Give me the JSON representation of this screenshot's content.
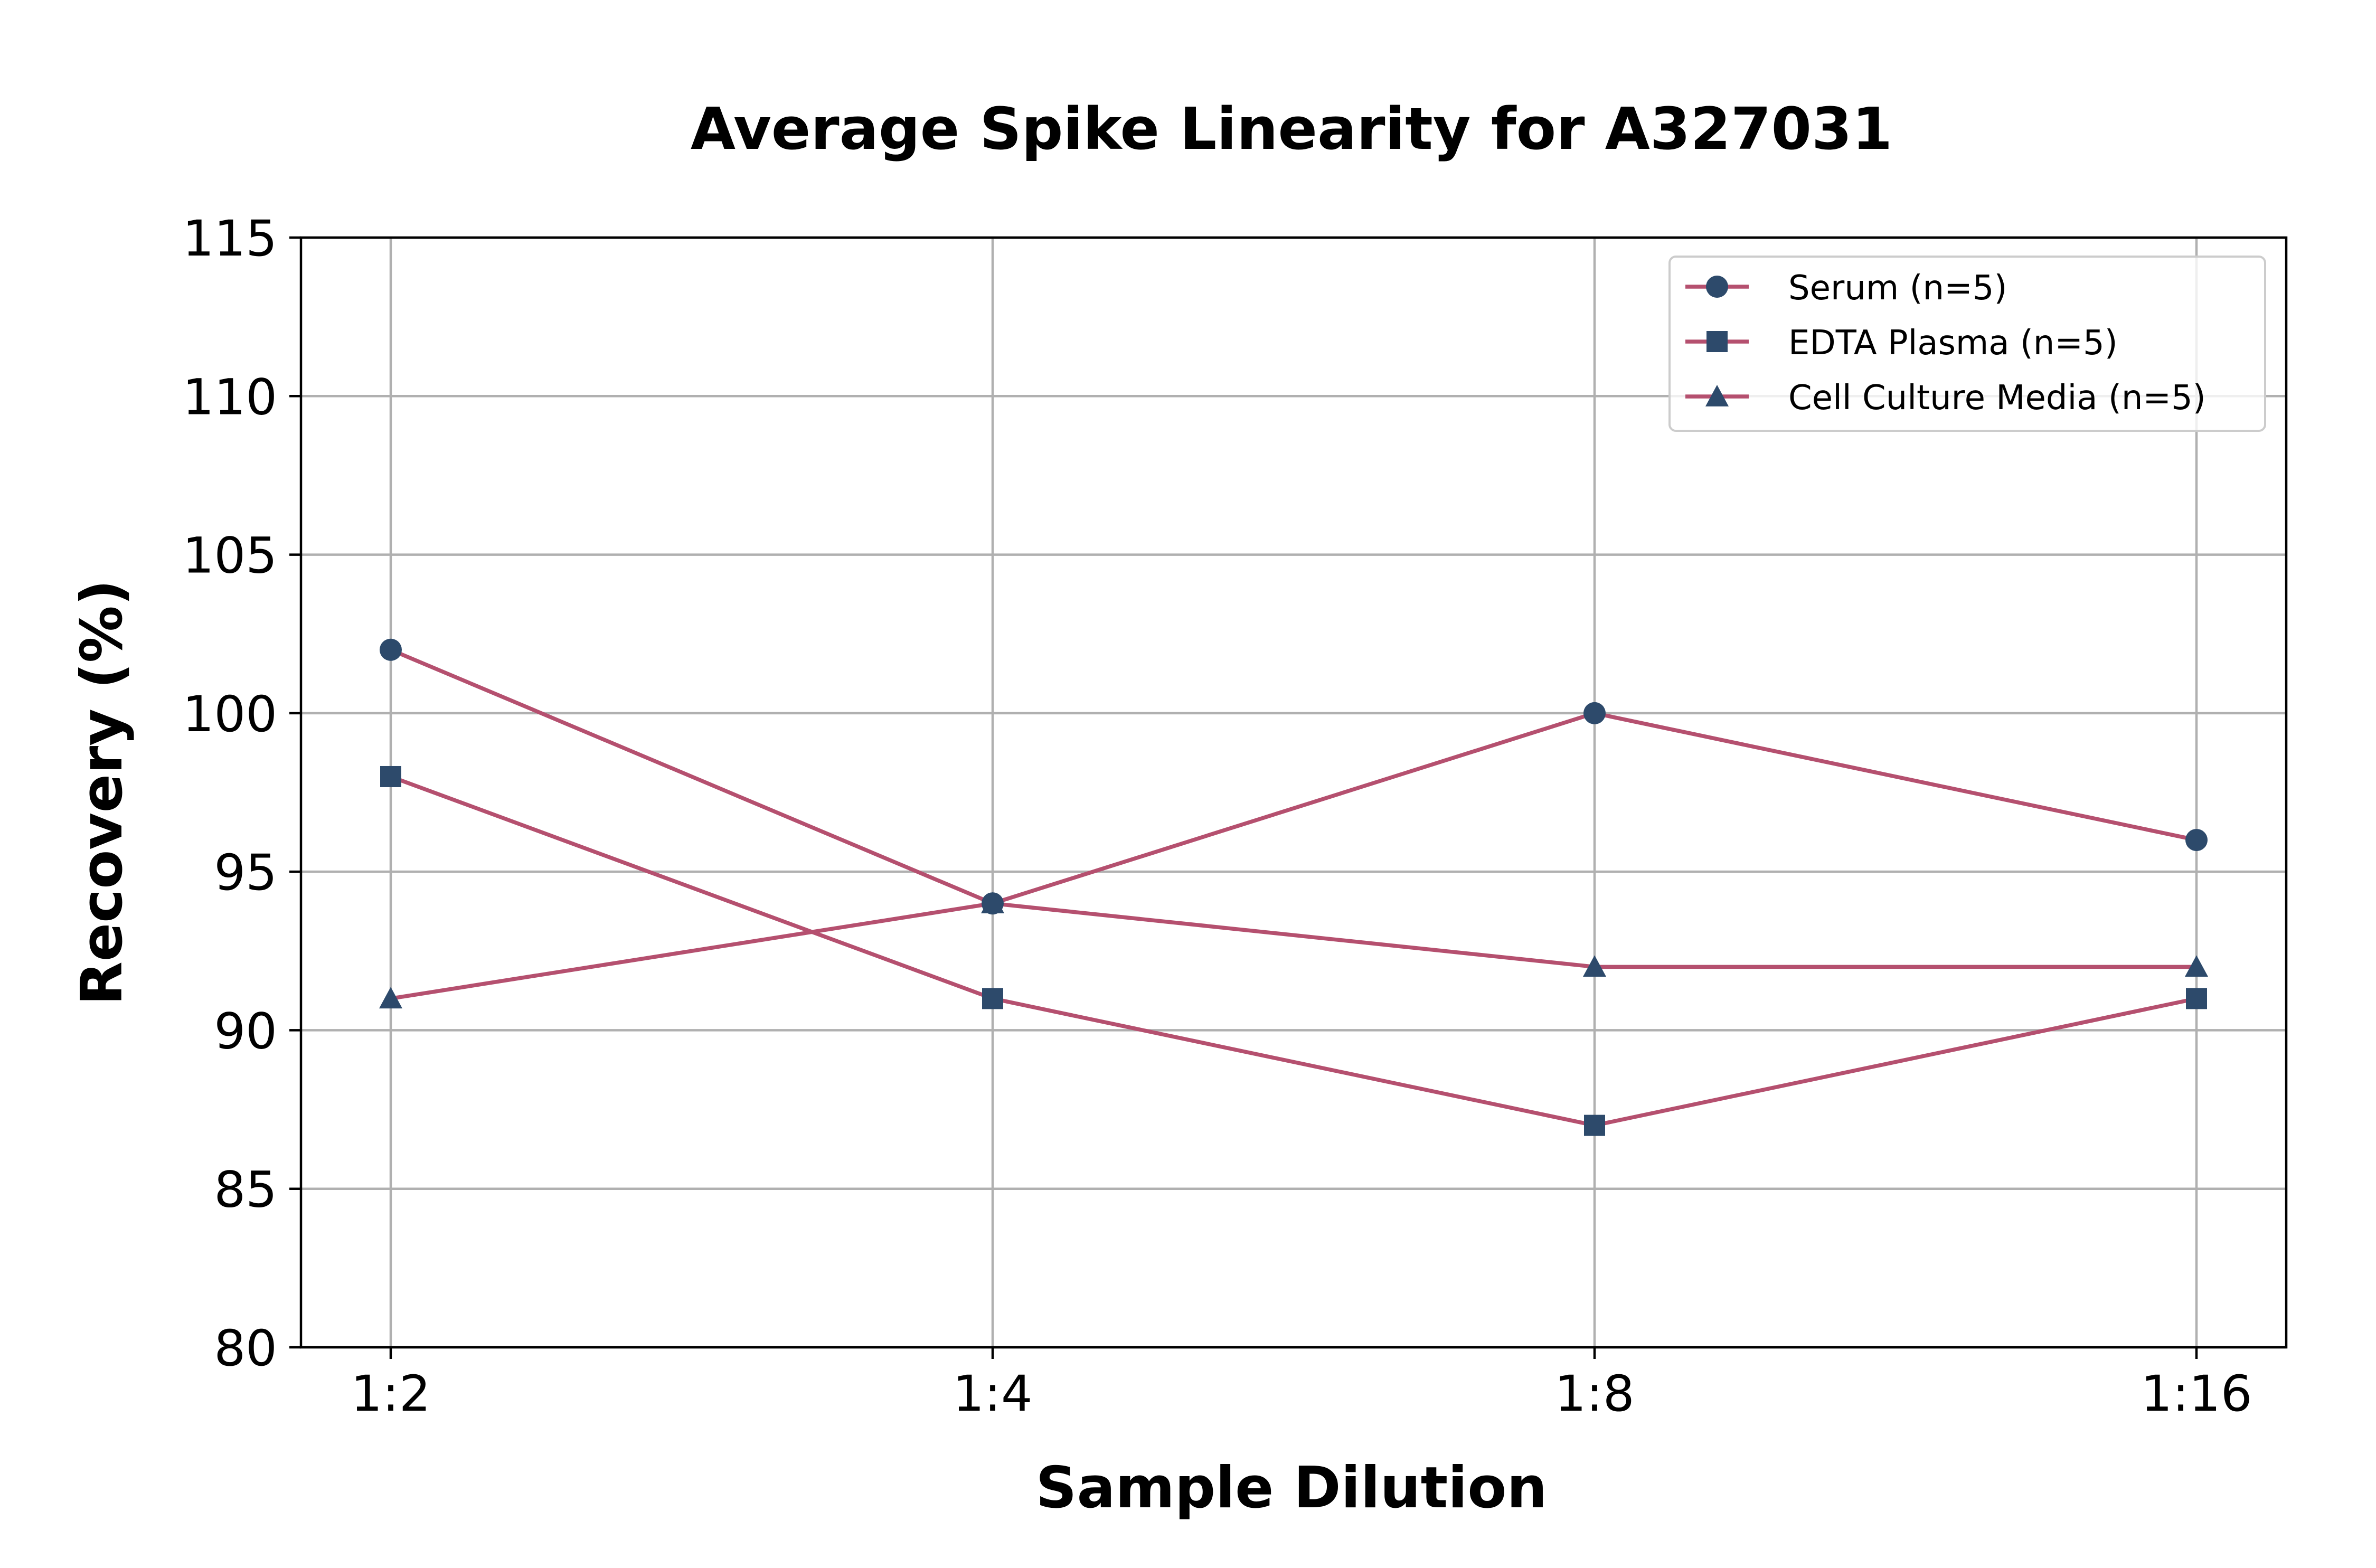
{
  "chart_data": {
    "type": "line",
    "title": "Average Spike Linearity for A327031",
    "xlabel": "Sample Dilution",
    "ylabel": "Recovery (%)",
    "categories": [
      "1:2",
      "1:4",
      "1:8",
      "1:16"
    ],
    "ylim": [
      80,
      115
    ],
    "yticks": [
      80,
      85,
      90,
      95,
      100,
      105,
      110,
      115
    ],
    "grid": true,
    "legend_position": "top-right",
    "line_color": "#b5506f",
    "marker_color": "#2d4a6b",
    "series": [
      {
        "name": "Serum (n=5)",
        "marker": "circle",
        "values": [
          102,
          94,
          100,
          96
        ]
      },
      {
        "name": "EDTA Plasma (n=5)",
        "marker": "square",
        "values": [
          98,
          91,
          87,
          91
        ]
      },
      {
        "name": "Cell Culture Media (n=5)",
        "marker": "triangle",
        "values": [
          91,
          94,
          92,
          92
        ]
      }
    ]
  }
}
